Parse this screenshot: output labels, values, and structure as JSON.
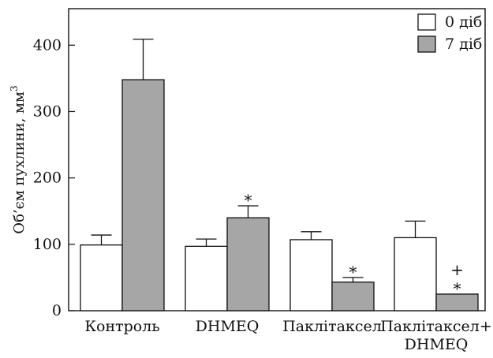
{
  "chart_data": {
    "type": "bar",
    "categories": [
      "Контроль",
      "DHMEQ",
      "Паклітаксел",
      "Паклітаксел+\nDHMEQ"
    ],
    "series": [
      {
        "name": "0 діб",
        "color": "#ffffff",
        "values": [
          99,
          97,
          107,
          110
        ],
        "errors": [
          15,
          11,
          12,
          25
        ]
      },
      {
        "name": "7 діб",
        "color": "#a6a6a6",
        "values": [
          348,
          140,
          43,
          25
        ],
        "errors": [
          61,
          18,
          7,
          0
        ]
      }
    ],
    "annotations": [
      {
        "category": "DHMEQ",
        "series": "7 діб",
        "text": "*"
      },
      {
        "category": "Паклітаксел",
        "series": "7 діб",
        "text": "*"
      },
      {
        "category": "Паклітаксел+\nDHMEQ",
        "series": "7 діб",
        "text": "+"
      },
      {
        "category": "Паклітаксел+\nDHMEQ",
        "series": "7 діб",
        "text": "*"
      }
    ],
    "ylabel_main": "Об’єм пухлини, мм",
    "ylabel_sup": "3",
    "yticks": [
      0,
      100,
      200,
      300,
      400
    ],
    "ylim": [
      0,
      455
    ],
    "legend_position": "top-right",
    "grid": false
  }
}
